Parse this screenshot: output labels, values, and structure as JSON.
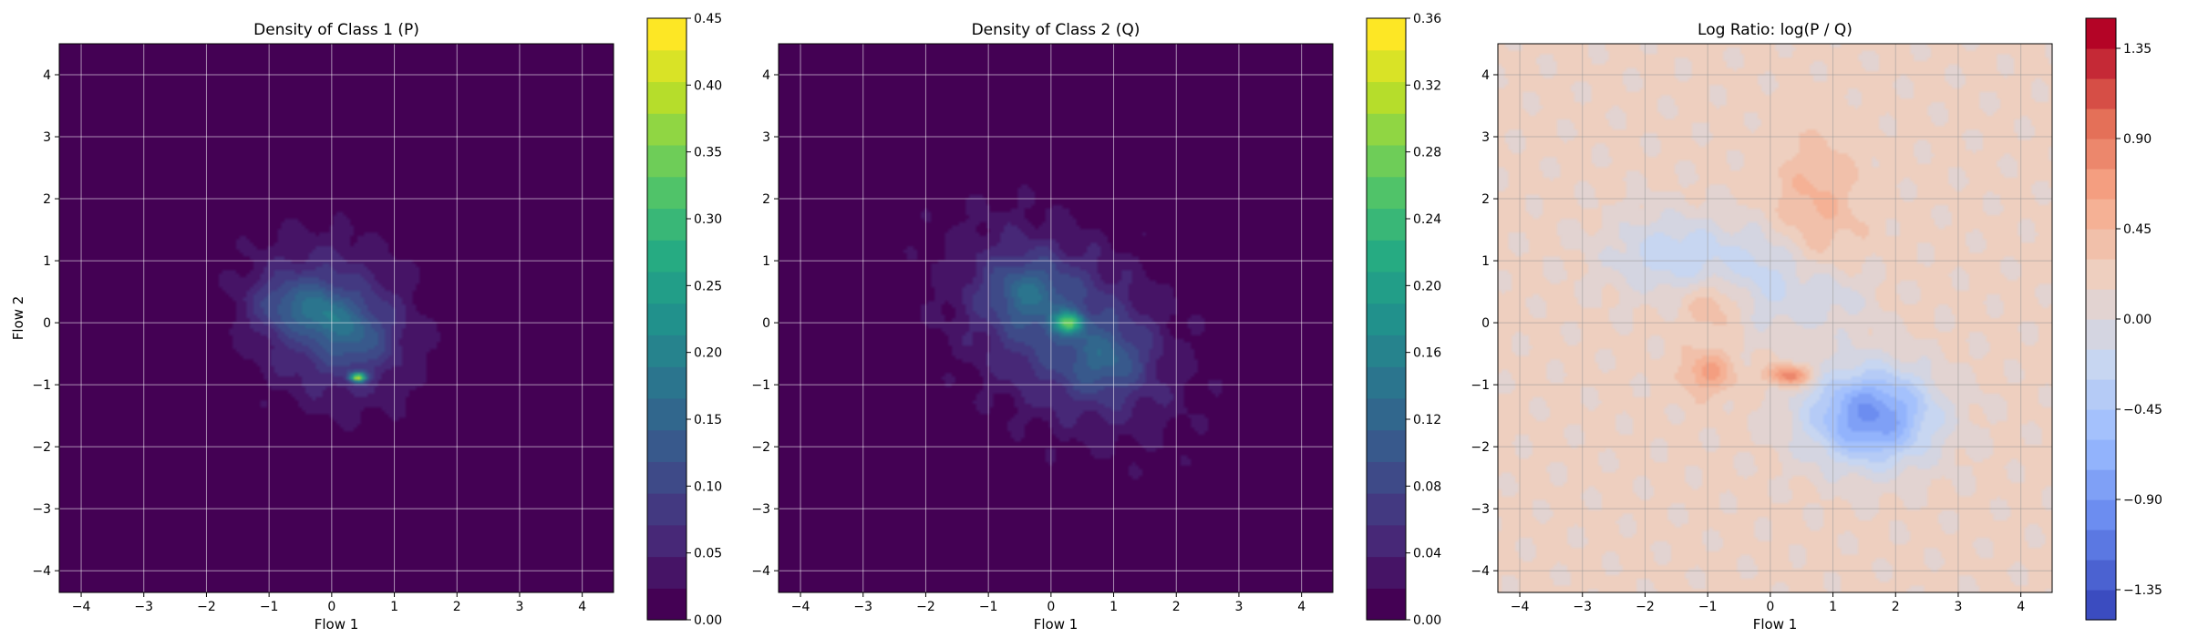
{
  "chart_data": [
    {
      "type": "heatmap",
      "subtype": "filled-contour",
      "title": "Density of Class 1 (P)",
      "xlabel": "Flow 1",
      "ylabel": "Flow 2",
      "xlim": [
        -4.35,
        4.5
      ],
      "ylim": [
        -4.35,
        4.5
      ],
      "xticks": [
        -4,
        -3,
        -2,
        -1,
        0,
        1,
        2,
        3,
        4
      ],
      "yticks": [
        -4,
        -3,
        -2,
        -1,
        0,
        1,
        2,
        3,
        4
      ],
      "xtick_labels": [
        "−4",
        "−3",
        "−2",
        "−1",
        "0",
        "1",
        "2",
        "3",
        "4"
      ],
      "ytick_labels": [
        "−4",
        "−3",
        "−2",
        "−1",
        "0",
        "1",
        "2",
        "3",
        "4"
      ],
      "grid": true,
      "colormap": "viridis",
      "colorbar": {
        "min": 0.0,
        "max": 0.45,
        "ticks": [
          0.0,
          0.05,
          0.1,
          0.15,
          0.2,
          0.25,
          0.3,
          0.35,
          0.4,
          0.45
        ],
        "tick_labels": [
          "0.00",
          "0.05",
          "0.10",
          "0.15",
          "0.20",
          "0.25",
          "0.30",
          "0.35",
          "0.40",
          "0.45"
        ],
        "levels": 19
      },
      "blobs": [
        {
          "x": 0.0,
          "y": 0.0,
          "sx": 1.0,
          "sy": 0.85,
          "rot": -0.75,
          "amp": 0.1
        },
        {
          "x": -0.6,
          "y": 0.3,
          "sx": 0.45,
          "sy": 0.3,
          "rot": 0.0,
          "amp": 0.07
        },
        {
          "x": 0.4,
          "y": -0.2,
          "sx": 0.35,
          "sy": 0.35,
          "rot": 0.0,
          "amp": 0.06
        },
        {
          "x": 0.42,
          "y": -0.88,
          "sx": 0.09,
          "sy": 0.05,
          "rot": 0.0,
          "amp": 0.32
        },
        {
          "x": -0.1,
          "y": 0.1,
          "sx": 0.25,
          "sy": 0.25,
          "rot": 0.0,
          "amp": 0.05
        }
      ]
    },
    {
      "type": "heatmap",
      "subtype": "filled-contour",
      "title": "Density of Class 2 (Q)",
      "xlabel": "Flow 1",
      "ylabel": "",
      "xlim": [
        -4.35,
        4.5
      ],
      "ylim": [
        -4.35,
        4.5
      ],
      "xticks": [
        -4,
        -3,
        -2,
        -1,
        0,
        1,
        2,
        3,
        4
      ],
      "yticks": [
        -4,
        -3,
        -2,
        -1,
        0,
        1,
        2,
        3,
        4
      ],
      "xtick_labels": [
        "−4",
        "−3",
        "−2",
        "−1",
        "0",
        "1",
        "2",
        "3",
        "4"
      ],
      "ytick_labels": [
        "−4",
        "−3",
        "−2",
        "−1",
        "0",
        "1",
        "2",
        "3",
        "4"
      ],
      "grid": true,
      "colormap": "viridis",
      "colorbar": {
        "min": 0.0,
        "max": 0.36,
        "ticks": [
          0.0,
          0.04,
          0.08,
          0.12,
          0.16,
          0.2,
          0.24,
          0.28,
          0.32,
          0.36
        ],
        "tick_labels": [
          "0.00",
          "0.04",
          "0.08",
          "0.12",
          "0.16",
          "0.20",
          "0.24",
          "0.28",
          "0.32",
          "0.36"
        ],
        "levels": 19
      },
      "blobs": [
        {
          "x": 0.2,
          "y": -0.1,
          "sx": 1.35,
          "sy": 0.9,
          "rot": -0.7,
          "amp": 0.09
        },
        {
          "x": -0.4,
          "y": 0.5,
          "sx": 0.4,
          "sy": 0.35,
          "rot": 0.0,
          "amp": 0.06
        },
        {
          "x": 0.9,
          "y": -0.6,
          "sx": 0.4,
          "sy": 0.35,
          "rot": 0.0,
          "amp": 0.05
        },
        {
          "x": 0.28,
          "y": 0.0,
          "sx": 0.16,
          "sy": 0.12,
          "rot": 0.0,
          "amp": 0.17
        }
      ]
    },
    {
      "type": "heatmap",
      "subtype": "filled-contour",
      "title": "Log Ratio: log(P / Q)",
      "xlabel": "Flow 1",
      "ylabel": "",
      "xlim": [
        -4.35,
        4.5
      ],
      "ylim": [
        -4.35,
        4.5
      ],
      "xticks": [
        -4,
        -3,
        -2,
        -1,
        0,
        1,
        2,
        3,
        4
      ],
      "yticks": [
        -4,
        -3,
        -2,
        -1,
        0,
        1,
        2,
        3,
        4
      ],
      "xtick_labels": [
        "−4",
        "−3",
        "−2",
        "−1",
        "0",
        "1",
        "2",
        "3",
        "4"
      ],
      "ytick_labels": [
        "−4",
        "−3",
        "−2",
        "−1",
        "0",
        "1",
        "2",
        "3",
        "4"
      ],
      "grid": true,
      "colormap": "coolwarm",
      "colorbar": {
        "min": -1.5,
        "max": 1.5,
        "ticks": [
          -1.35,
          -0.9,
          -0.45,
          0.0,
          0.45,
          0.9,
          1.35
        ],
        "tick_labels": [
          "−1.35",
          "−0.90",
          "−0.45",
          "0.00",
          "0.45",
          "0.90",
          "1.35"
        ],
        "levels": 20
      },
      "background": 0.18,
      "blobs": [
        {
          "x": 1.6,
          "y": -1.5,
          "sx": 0.7,
          "sy": 0.55,
          "rot": 0.0,
          "amp": -1.1
        },
        {
          "x": -1.5,
          "y": 1.1,
          "sx": 0.75,
          "sy": 0.45,
          "rot": 0.0,
          "amp": -0.45
        },
        {
          "x": 0.0,
          "y": 0.7,
          "sx": 0.5,
          "sy": 0.6,
          "rot": 0.0,
          "amp": -0.35
        },
        {
          "x": 1.0,
          "y": 0.4,
          "sx": 0.45,
          "sy": 0.4,
          "rot": 0.0,
          "amp": -0.25
        },
        {
          "x": 0.3,
          "y": -0.85,
          "sx": 0.25,
          "sy": 0.12,
          "rot": 0.0,
          "amp": 0.75
        },
        {
          "x": -1.0,
          "y": -0.8,
          "sx": 0.3,
          "sy": 0.25,
          "rot": 0.0,
          "amp": 0.45
        },
        {
          "x": -0.9,
          "y": 0.3,
          "sx": 0.35,
          "sy": 0.3,
          "rot": 0.0,
          "amp": 0.3
        },
        {
          "x": 0.7,
          "y": 1.9,
          "sx": 0.5,
          "sy": 0.8,
          "rot": 0.0,
          "amp": 0.3
        }
      ]
    }
  ]
}
